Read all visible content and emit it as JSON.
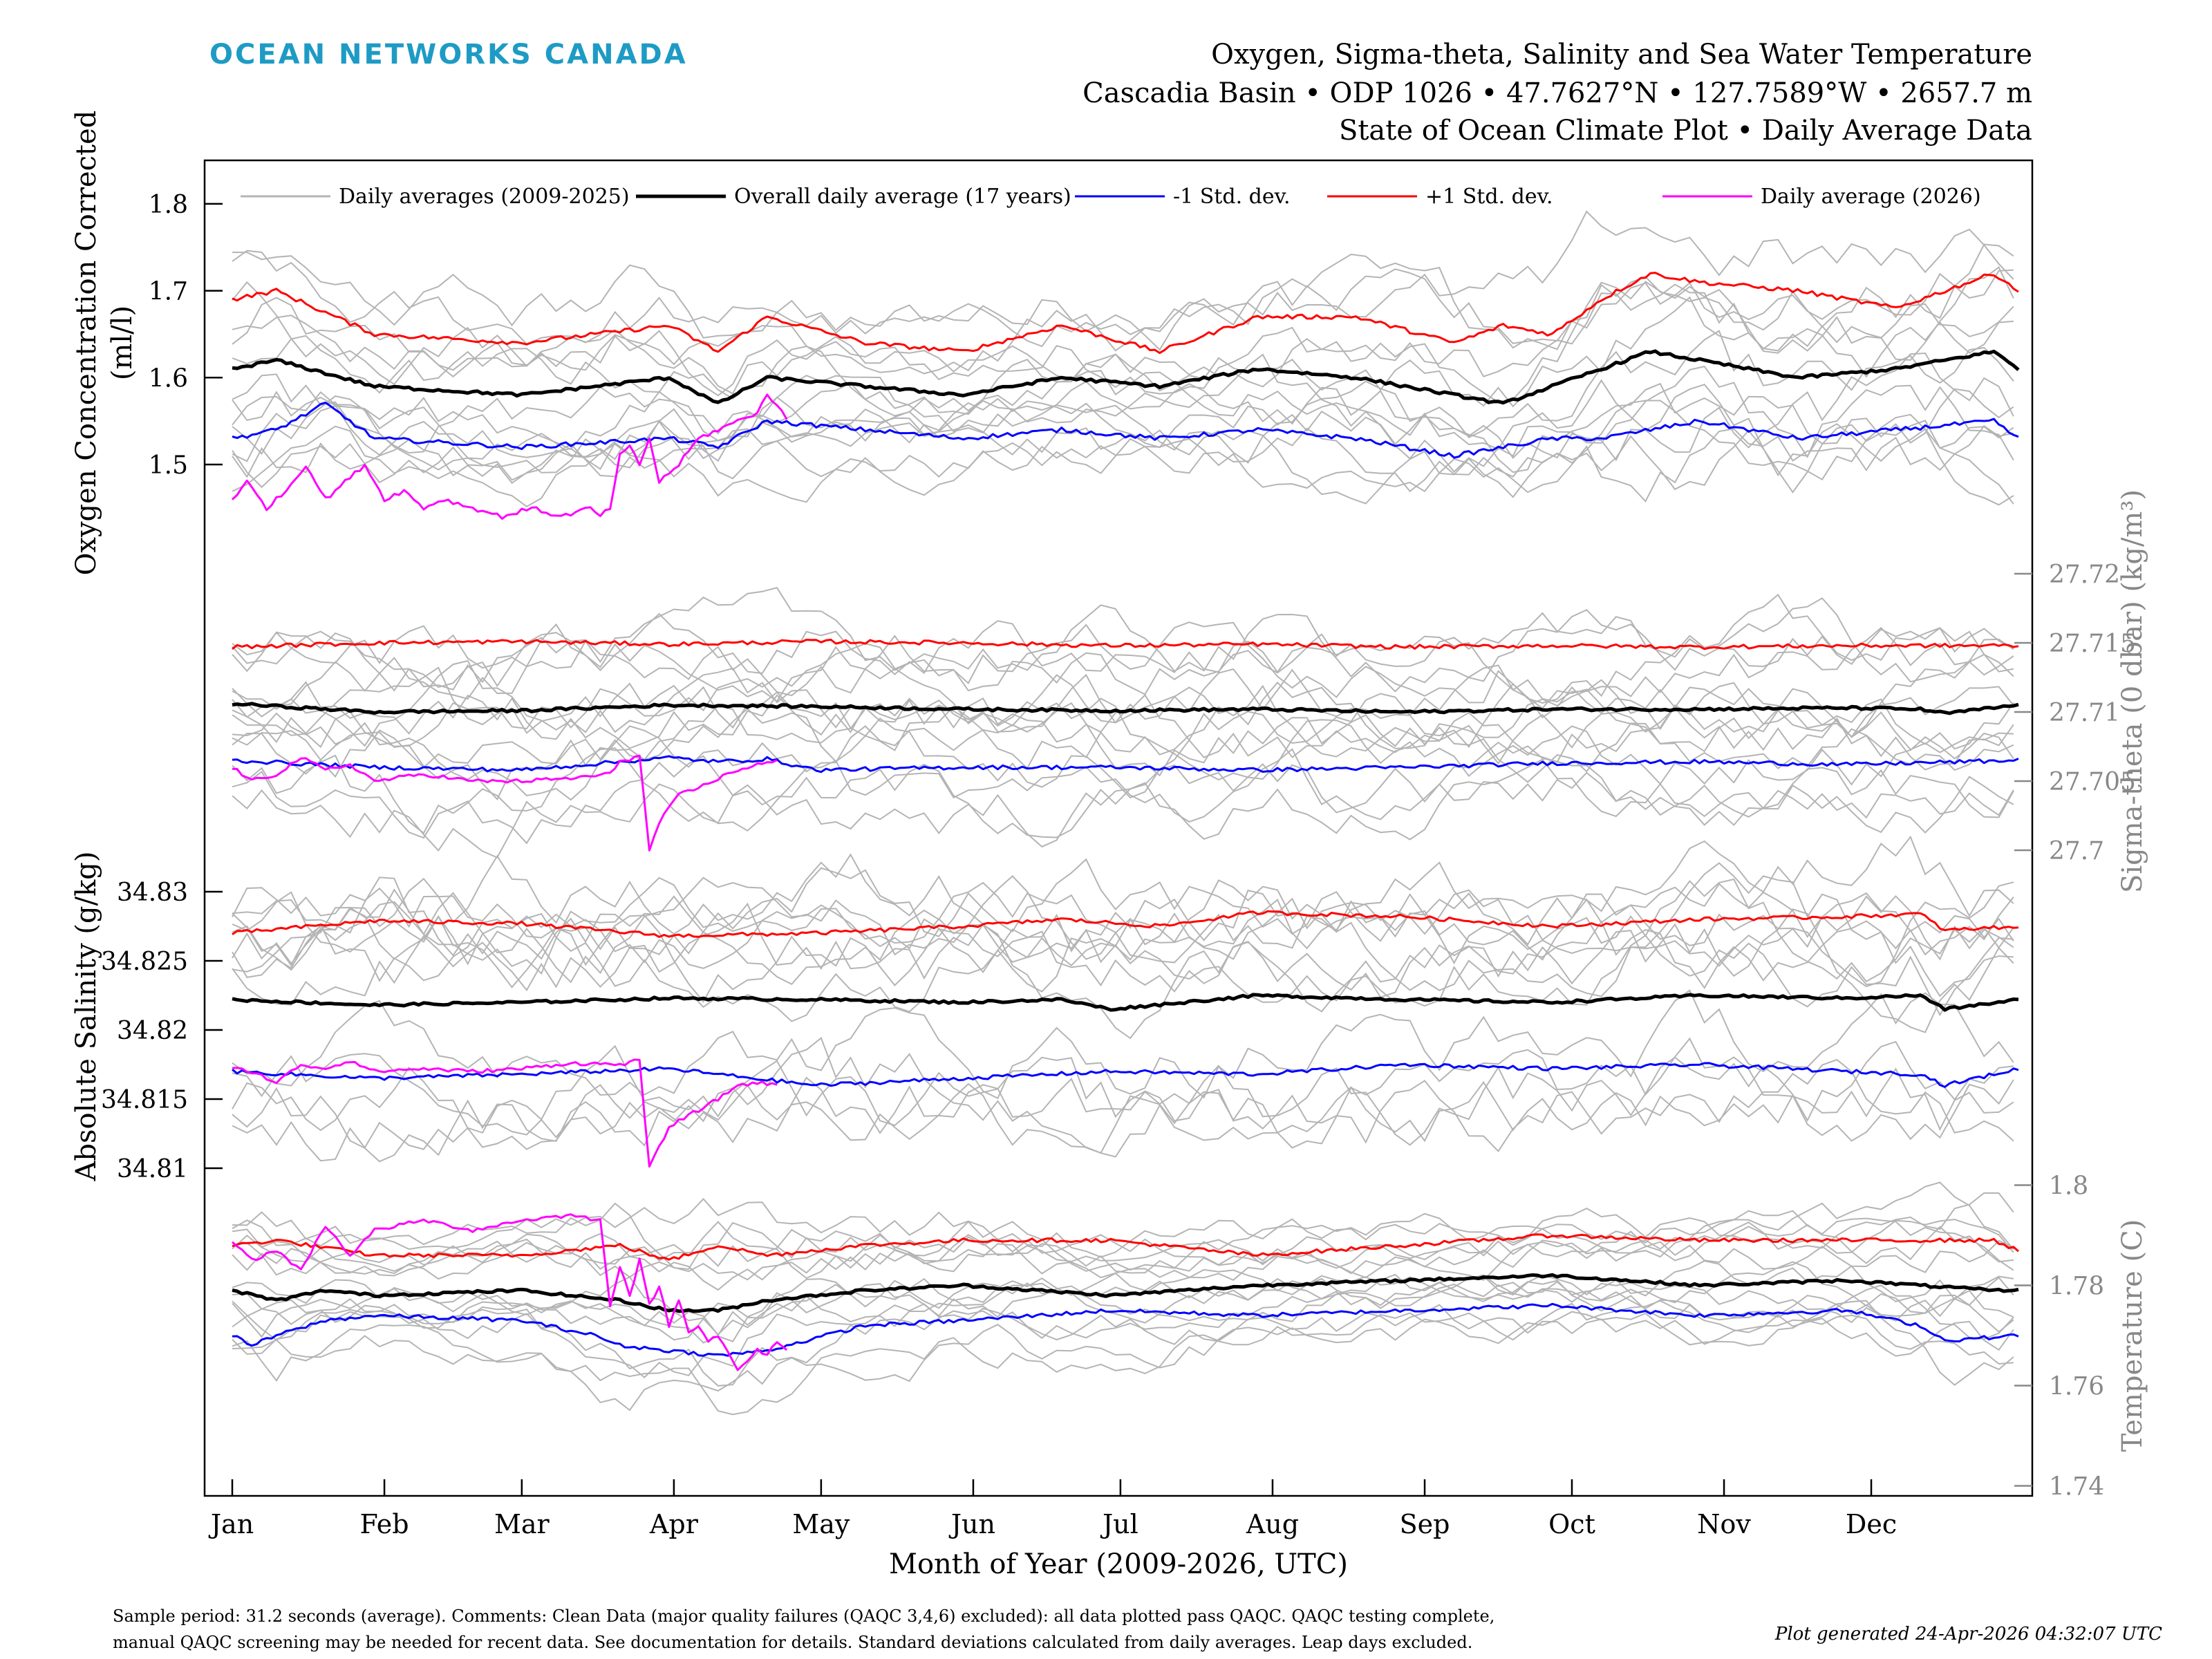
{
  "header": {
    "logo_text": "OCEAN NETWORKS CANADA",
    "logo_color": "#1e9bc5",
    "title_lines": [
      "Oxygen, Sigma-theta, Salinity and Sea Water Temperature",
      "Cascadia Basin • ODP 1026 • 47.7627°N • 127.7589°W • 2657.7 m",
      "State of Ocean Climate Plot • Daily Average Data"
    ]
  },
  "footer": {
    "note_lines": [
      "Sample period: 31.2 seconds (average). Comments: Clean Data (major quality failures (QAQC 3,4,6) excluded): all data plotted pass QAQC. QAQC testing complete,",
      "manual QAQC screening may be needed for recent data. See documentation for details. Standard deviations calculated from daily averages. Leap days excluded."
    ],
    "generated": "Plot generated 24-Apr-2026 04:32:07 UTC"
  },
  "chart_data": {
    "type": "line",
    "xlabel": "Month of Year (2009-2026, UTC)",
    "x_ticks": [
      "Jan",
      "Feb",
      "Mar",
      "Apr",
      "May",
      "Jun",
      "Jul",
      "Aug",
      "Sep",
      "Oct",
      "Nov",
      "Dec"
    ],
    "x_units": "day of year",
    "xlim": [
      1,
      365
    ],
    "grid": false,
    "legend": {
      "placement": "top",
      "entries": [
        {
          "label": "Daily averages (2009-2025)",
          "color": "#b4b4b4"
        },
        {
          "label": "Overall daily average (17 years)",
          "color": "#000000"
        },
        {
          "label": "-1 Std. dev.",
          "color": "#0000ff"
        },
        {
          "label": "+1 Std. dev.",
          "color": "#ff0000"
        },
        {
          "label": "Daily average (2026)",
          "color": "#ff00ff"
        }
      ]
    },
    "panels": [
      {
        "name": "oxygen",
        "ylabel": [
          "Oxygen Concentration Corrected",
          "(ml/l)"
        ],
        "axis_side": "left",
        "ylim": [
          1.43,
          1.85
        ],
        "ticks": [
          1.5,
          1.6,
          1.7,
          1.8
        ],
        "tick_labels": [
          "1.5",
          "1.6",
          "1.7",
          "1.8"
        ],
        "series": {
          "plus_std": {
            "x": [
              1,
              10,
              30,
              60,
              90,
              100,
              110,
              130,
              150,
              170,
              190,
              210,
              230,
              250,
              260,
              270,
              280,
              290,
              300,
              320,
              340,
              360,
              365
            ],
            "y": [
              1.69,
              1.7,
              1.65,
              1.64,
              1.66,
              1.63,
              1.67,
              1.64,
              1.63,
              1.66,
              1.63,
              1.67,
              1.67,
              1.64,
              1.66,
              1.65,
              1.69,
              1.72,
              1.71,
              1.7,
              1.68,
              1.72,
              1.7
            ]
          },
          "mean": {
            "x": [
              1,
              10,
              30,
              60,
              90,
              100,
              110,
              130,
              150,
              170,
              190,
              210,
              230,
              250,
              260,
              270,
              280,
              290,
              300,
              320,
              340,
              360,
              365
            ],
            "y": [
              1.61,
              1.62,
              1.59,
              1.58,
              1.6,
              1.57,
              1.6,
              1.59,
              1.58,
              1.6,
              1.59,
              1.61,
              1.6,
              1.58,
              1.57,
              1.59,
              1.61,
              1.63,
              1.62,
              1.6,
              1.61,
              1.63,
              1.61
            ]
          },
          "minus_std": {
            "x": [
              1,
              10,
              20,
              30,
              60,
              90,
              100,
              110,
              130,
              150,
              170,
              190,
              210,
              230,
              250,
              270,
              280,
              290,
              300,
              320,
              340,
              360,
              365
            ],
            "y": [
              1.53,
              1.54,
              1.57,
              1.53,
              1.52,
              1.53,
              1.52,
              1.55,
              1.54,
              1.53,
              1.54,
              1.53,
              1.54,
              1.53,
              1.51,
              1.53,
              1.53,
              1.54,
              1.55,
              1.53,
              1.54,
              1.55,
              1.53
            ]
          },
          "year_2026": {
            "x": [
              1,
              4,
              8,
              12,
              16,
              20,
              24,
              28,
              32,
              36,
              40,
              44,
              50,
              56,
              62,
              68,
              74,
              76,
              78,
              80,
              82,
              84,
              86,
              88,
              92,
              96,
              100,
              104,
              108,
              110,
              112,
              114
            ],
            "y": [
              1.46,
              1.48,
              1.45,
              1.47,
              1.5,
              1.46,
              1.48,
              1.5,
              1.46,
              1.47,
              1.45,
              1.46,
              1.45,
              1.44,
              1.45,
              1.44,
              1.45,
              1.44,
              1.45,
              1.51,
              1.52,
              1.5,
              1.53,
              1.48,
              1.5,
              1.53,
              1.54,
              1.55,
              1.56,
              1.58,
              1.57,
              1.55
            ]
          }
        }
      },
      {
        "name": "sigma_theta",
        "ylabel": [
          "Sigma-theta (0 dbar) (kg/m³)"
        ],
        "axis_side": "right",
        "ylim": [
          27.6995,
          27.7235
        ],
        "ticks": [
          27.7,
          27.705,
          27.71,
          27.715,
          27.72
        ],
        "tick_labels": [
          "27.7",
          "27.705",
          "27.71",
          "27.715",
          "27.72"
        ],
        "series": {
          "plus_std": {
            "x": [
              1,
              30,
              60,
              90,
              120,
              150,
              180,
              210,
              240,
              270,
              300,
              330,
              365
            ],
            "y": [
              27.7147,
              27.715,
              27.7151,
              27.7149,
              27.7151,
              27.715,
              27.7148,
              27.7149,
              27.7147,
              27.7148,
              27.7147,
              27.7148,
              27.7148
            ]
          },
          "mean": {
            "x": [
              1,
              30,
              60,
              90,
              120,
              150,
              180,
              210,
              240,
              270,
              300,
              330,
              345,
              350,
              365
            ],
            "y": [
              27.7106,
              27.71,
              27.7101,
              27.7105,
              27.7104,
              27.7102,
              27.7101,
              27.7102,
              27.71,
              27.7102,
              27.7102,
              27.7103,
              27.7102,
              27.7099,
              27.7105
            ]
          },
          "minus_std": {
            "x": [
              1,
              30,
              60,
              80,
              90,
              100,
              110,
              120,
              150,
              180,
              210,
              240,
              270,
              300,
              330,
              365
            ],
            "y": [
              27.7065,
              27.706,
              27.7058,
              27.7064,
              27.7067,
              27.7064,
              27.7066,
              27.7058,
              27.706,
              27.706,
              27.7058,
              27.706,
              27.7063,
              27.7064,
              27.7062,
              27.7065
            ]
          },
          "year_2026": {
            "x": [
              1,
              5,
              10,
              15,
              20,
              25,
              30,
              40,
              50,
              60,
              70,
              78,
              80,
              82,
              84,
              86,
              88,
              90,
              92,
              96,
              100,
              104,
              108,
              112
            ],
            "y": [
              27.706,
              27.705,
              27.7055,
              27.7067,
              27.7058,
              27.7062,
              27.705,
              27.7055,
              27.705,
              27.705,
              27.7052,
              27.7055,
              27.7065,
              27.7066,
              27.7068,
              27.7,
              27.702,
              27.703,
              27.704,
              27.7045,
              27.7052,
              27.7058,
              27.7062,
              27.7064
            ]
          }
        }
      },
      {
        "name": "salinity",
        "ylabel": [
          "Absolute Salinity (g/kg)"
        ],
        "axis_side": "left",
        "ylim": [
          34.8095,
          34.8325
        ],
        "ticks": [
          34.81,
          34.815,
          34.82,
          34.825,
          34.83
        ],
        "tick_labels": [
          "34.81",
          "34.815",
          "34.82",
          "34.825",
          "34.83"
        ],
        "series": {
          "plus_std": {
            "x": [
              1,
              30,
              60,
              90,
              120,
              150,
              170,
              190,
              210,
              240,
              270,
              300,
              330,
              345,
              350,
              365
            ],
            "y": [
              34.827,
              34.8279,
              34.8277,
              34.8268,
              34.827,
              34.8275,
              34.828,
              34.8275,
              34.8285,
              34.8282,
              34.8275,
              34.828,
              34.8282,
              34.8284,
              34.8272,
              34.8275
            ]
          },
          "mean": {
            "x": [
              1,
              30,
              60,
              90,
              120,
              150,
              170,
              180,
              210,
              240,
              270,
              300,
              330,
              345,
              350,
              365
            ],
            "y": [
              34.8222,
              34.8218,
              34.822,
              34.8223,
              34.8222,
              34.822,
              34.8222,
              34.8215,
              34.8225,
              34.8222,
              34.822,
              34.8225,
              34.8223,
              34.8225,
              34.8215,
              34.8222
            ]
          },
          "minus_std": {
            "x": [
              1,
              30,
              60,
              90,
              120,
              150,
              180,
              210,
              240,
              270,
              300,
              330,
              345,
              350,
              365
            ],
            "y": [
              34.817,
              34.8165,
              34.8168,
              34.8172,
              34.816,
              34.8165,
              34.817,
              34.8168,
              34.8175,
              34.8172,
              34.8175,
              34.817,
              34.8168,
              34.816,
              34.8172
            ]
          },
          "year_2026": {
            "x": [
              1,
              5,
              10,
              15,
              20,
              25,
              30,
              40,
              50,
              60,
              70,
              80,
              84,
              86,
              90,
              95,
              100,
              104,
              108,
              112
            ],
            "y": [
              34.8172,
              34.817,
              34.8162,
              34.8175,
              34.8172,
              34.8178,
              34.817,
              34.8172,
              34.817,
              34.8172,
              34.8176,
              34.8175,
              34.8178,
              34.81,
              34.813,
              34.814,
              34.815,
              34.816,
              34.8162,
              34.816
            ]
          }
        }
      },
      {
        "name": "temperature",
        "ylabel": [
          "Temperature (C)"
        ],
        "axis_side": "right",
        "ylim": [
          1.738,
          1.802
        ],
        "ticks": [
          1.74,
          1.76,
          1.78,
          1.8
        ],
        "tick_labels": [
          "1.74",
          "1.76",
          "1.78",
          "1.8"
        ],
        "series": {
          "plus_std": {
            "x": [
              1,
              10,
              30,
              60,
              80,
              90,
              100,
              110,
              130,
              150,
              180,
              210,
              240,
              270,
              300,
              330,
              360,
              365
            ],
            "y": [
              1.788,
              1.789,
              1.786,
              1.786,
              1.788,
              1.785,
              1.788,
              1.786,
              1.788,
              1.789,
              1.789,
              1.786,
              1.788,
              1.79,
              1.789,
              1.789,
              1.789,
              1.787
            ]
          },
          "mean": {
            "x": [
              1,
              10,
              20,
              30,
              60,
              80,
              90,
              100,
              110,
              130,
              150,
              180,
              210,
              240,
              270,
              300,
              330,
              360,
              365
            ],
            "y": [
              1.779,
              1.777,
              1.779,
              1.778,
              1.779,
              1.777,
              1.775,
              1.775,
              1.777,
              1.779,
              1.78,
              1.778,
              1.78,
              1.781,
              1.782,
              1.78,
              1.781,
              1.779,
              1.779
            ]
          },
          "minus_std": {
            "x": [
              1,
              5,
              10,
              20,
              30,
              60,
              75,
              80,
              90,
              100,
              110,
              130,
              150,
              180,
              210,
              240,
              270,
              300,
              330,
              345,
              350,
              365
            ],
            "y": [
              1.77,
              1.768,
              1.77,
              1.773,
              1.774,
              1.773,
              1.77,
              1.768,
              1.767,
              1.766,
              1.767,
              1.772,
              1.773,
              1.775,
              1.774,
              1.775,
              1.776,
              1.774,
              1.775,
              1.772,
              1.769,
              1.77
            ]
          },
          "year_2026": {
            "x": [
              1,
              5,
              10,
              15,
              20,
              25,
              30,
              40,
              50,
              60,
              70,
              76,
              78,
              80,
              82,
              84,
              86,
              88,
              90,
              92,
              94,
              96,
              98,
              100,
              104,
              108,
              110,
              112,
              114
            ],
            "y": [
              1.789,
              1.785,
              1.787,
              1.783,
              1.792,
              1.786,
              1.791,
              1.793,
              1.791,
              1.793,
              1.794,
              1.793,
              1.776,
              1.784,
              1.778,
              1.785,
              1.776,
              1.78,
              1.772,
              1.777,
              1.771,
              1.772,
              1.769,
              1.77,
              1.763,
              1.767,
              1.766,
              1.769,
              1.767
            ]
          }
        }
      }
    ]
  }
}
